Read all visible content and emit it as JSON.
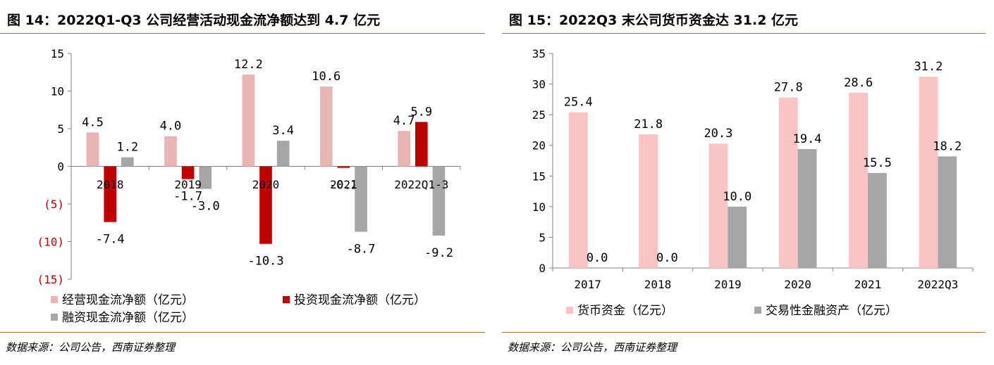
{
  "left_panel": {
    "title": "图 14：2022Q1-Q3 公司经营活动现金流净额达到 4.7 亿元",
    "source": "数据来源：公司公告，西南证券整理"
  },
  "right_panel": {
    "title": "图 15：2022Q3 末公司货币资金达 31.2 亿元",
    "source": "数据来源：公司公告，西南证券整理"
  },
  "chart_data": [
    {
      "type": "bar",
      "title": "",
      "categories": [
        "2018",
        "2019",
        "2020",
        "2021",
        "2022Q1-3"
      ],
      "series": [
        {
          "name": "经营现金流净额（亿元）",
          "values": [
            4.5,
            4.0,
            12.2,
            10.6,
            4.7
          ],
          "labels": [
            "4.5",
            "4.0",
            "12.2",
            "10.6",
            "4.7"
          ],
          "color": "#e8b4b4"
        },
        {
          "name": "投资现金流净额（亿元）",
          "values": [
            -7.4,
            -1.7,
            -10.3,
            -0.2,
            5.9
          ],
          "labels": [
            "-7.4",
            "-1.7",
            "-10.3",
            "-0.2",
            "5.9"
          ],
          "color": "#c00000"
        },
        {
          "name": "融资现金流净额（亿元）",
          "values": [
            1.2,
            -3.0,
            3.4,
            -8.7,
            -9.2
          ],
          "labels": [
            "1.2",
            "-3.0",
            "3.4",
            "-8.7",
            "-9.2"
          ],
          "color": "#a6a6a6"
        }
      ],
      "yticks": [
        15,
        10,
        5,
        0,
        -5,
        -10,
        -15
      ],
      "ytick_labels": [
        "15",
        "10",
        "5",
        "0",
        "(5)",
        "(10)",
        "(15)"
      ],
      "negative_tick_color": "#c00000",
      "ylim": [
        -15,
        15
      ],
      "grid": false,
      "legend_position": "bottom"
    },
    {
      "type": "bar",
      "title": "",
      "categories": [
        "2017",
        "2018",
        "2019",
        "2020",
        "2021",
        "2022Q3"
      ],
      "series": [
        {
          "name": "货币资金（亿元）",
          "values": [
            25.4,
            21.8,
            20.3,
            27.8,
            28.6,
            31.2
          ],
          "labels": [
            "25.4",
            "21.8",
            "20.3",
            "27.8",
            "28.6",
            "31.2"
          ],
          "color": "#fbc4c4"
        },
        {
          "name": "交易性金融资产（亿元）",
          "values": [
            0.0,
            0.0,
            10.0,
            19.4,
            15.5,
            18.2
          ],
          "labels": [
            "0.0",
            "0.0",
            "10.0",
            "19.4",
            "15.5",
            "18.2"
          ],
          "color": "#a6a6a6"
        }
      ],
      "yticks": [
        35,
        30,
        25,
        20,
        15,
        10,
        5,
        0
      ],
      "ytick_labels": [
        "35",
        "30",
        "25",
        "20",
        "15",
        "10",
        "5",
        "0"
      ],
      "ylim": [
        0,
        35
      ],
      "grid": false,
      "legend_position": "bottom"
    }
  ]
}
